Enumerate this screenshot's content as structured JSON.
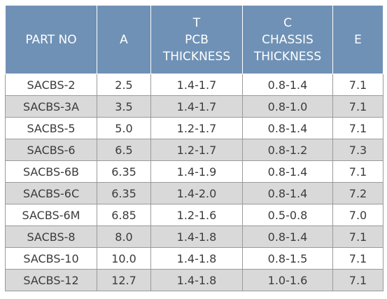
{
  "headers": [
    {
      "lines": [
        "PART NO"
      ]
    },
    {
      "lines": [
        "A"
      ]
    },
    {
      "lines": [
        "T",
        "PCB",
        "THICKNESS"
      ]
    },
    {
      "lines": [
        "C",
        "CHASSIS",
        "THICKNESS"
      ]
    },
    {
      "lines": [
        "E"
      ]
    }
  ],
  "rows": [
    [
      "SACBS-2",
      "2.5",
      "1.4-1.7",
      "0.8-1.4",
      "7.1"
    ],
    [
      "SACBS-3A",
      "3.5",
      "1.4-1.7",
      "0.8-1.0",
      "7.1"
    ],
    [
      "SACBS-5",
      "5.0",
      "1.2-1.7",
      "0.8-1.4",
      "7.1"
    ],
    [
      "SACBS-6",
      "6.5",
      "1.2-1.7",
      "0.8-1.2",
      "7.3"
    ],
    [
      "SACBS-6B",
      "6.35",
      "1.4-1.9",
      "0.8-1.4",
      "7.1"
    ],
    [
      "SACBS-6C",
      "6.35",
      "1.4-2.0",
      "0.8-1.4",
      "7.2"
    ],
    [
      "SACBS-6M",
      "6.85",
      "1.2-1.6",
      "0.5-0.8",
      "7.0"
    ],
    [
      "SACBS-8",
      "8.0",
      "1.4-1.8",
      "0.8-1.4",
      "7.1"
    ],
    [
      "SACBS-10",
      "10.0",
      "1.4-1.8",
      "0.8-1.5",
      "7.1"
    ],
    [
      "SACBS-12",
      "12.7",
      "1.4-1.8",
      "1.0-1.6",
      "7.1"
    ]
  ],
  "colors": {
    "header_bg": "#6f91b5",
    "header_text": "#ffffff",
    "row_alt_bg": "#d9d9d9",
    "row_bg": "#ffffff"
  }
}
